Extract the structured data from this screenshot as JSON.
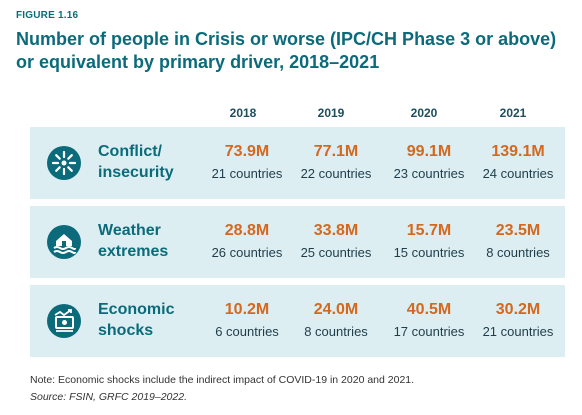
{
  "figure_label": "FIGURE 1.16",
  "title": "Number of people in Crisis or worse (IPC/CH Phase 3 or above) or equivalent by primary driver, 2018–2021",
  "note": "Note: Economic shocks include the indirect impact of COVID-19 in 2020 and 2021.",
  "source": "Source: FSIN, GRFC 2019–2022.",
  "colors": {
    "accent": "#0b6b7a",
    "value": "#d4681f",
    "row_bg": "#dceef1"
  },
  "chart_data": {
    "type": "table",
    "title": "Number of people in Crisis or worse (IPC/CH Phase 3 or above) or equivalent by primary driver, 2018–2021",
    "columns": [
      "2018",
      "2019",
      "2020",
      "2021"
    ],
    "rows": [
      {
        "driver_line1": "Conflict/",
        "driver_line2": "insecurity",
        "icon": "conflict-icon",
        "values": [
          "73.9M",
          "77.1M",
          "99.1M",
          "139.1M"
        ],
        "values_millions": [
          73.9,
          77.1,
          99.1,
          139.1
        ],
        "countries": [
          "21 countries",
          "22 countries",
          "23 countries",
          "24 countries"
        ]
      },
      {
        "driver_line1": "Weather",
        "driver_line2": "extremes",
        "icon": "flood-house-icon",
        "values": [
          "28.8M",
          "33.8M",
          "15.7M",
          "23.5M"
        ],
        "values_millions": [
          28.8,
          33.8,
          15.7,
          23.5
        ],
        "countries": [
          "26 countries",
          "25 countries",
          "15 countries",
          "8 countries"
        ]
      },
      {
        "driver_line1": "Economic",
        "driver_line2": "shocks",
        "icon": "economic-shock-icon",
        "values": [
          "10.2M",
          "24.0M",
          "40.5M",
          "30.2M"
        ],
        "values_millions": [
          10.2,
          24.0,
          40.5,
          30.2
        ],
        "countries": [
          "6 countries",
          "8 countries",
          "17 countries",
          "21 countries"
        ]
      }
    ]
  }
}
